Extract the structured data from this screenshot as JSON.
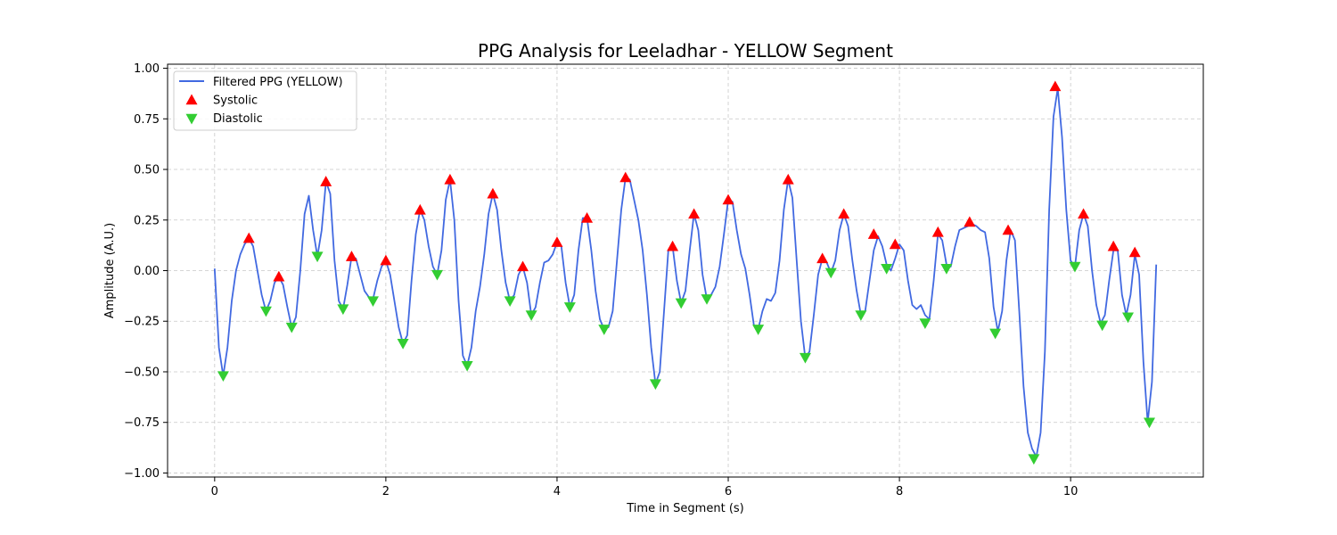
{
  "chart_data": {
    "type": "line",
    "title": "PPG Analysis for Leeladhar - YELLOW Segment",
    "xlabel": "Time in Segment (s)",
    "ylabel": "Amplitude (A.U.)",
    "xlim": [
      -0.55,
      11.55
    ],
    "ylim": [
      -1.02,
      1.02
    ],
    "xticks": [
      0,
      2,
      4,
      6,
      8,
      10
    ],
    "yticks": [
      -1.0,
      -0.75,
      -0.5,
      -0.25,
      0.0,
      0.25,
      0.5,
      0.75,
      1.0
    ],
    "grid": true,
    "legend_position": "upper-left",
    "colors": {
      "line": "#4169e1",
      "systolic": "#ff0000",
      "diastolic": "#32cd32"
    },
    "series": [
      {
        "name": "Filtered PPG (YELLOW)",
        "kind": "line",
        "points": [
          [
            0.0,
            0.01
          ],
          [
            0.05,
            -0.38
          ],
          [
            0.1,
            -0.52
          ],
          [
            0.15,
            -0.38
          ],
          [
            0.2,
            -0.15
          ],
          [
            0.25,
            0.0
          ],
          [
            0.3,
            0.08
          ],
          [
            0.35,
            0.13
          ],
          [
            0.4,
            0.16
          ],
          [
            0.45,
            0.12
          ],
          [
            0.5,
            0.0
          ],
          [
            0.55,
            -0.12
          ],
          [
            0.6,
            -0.2
          ],
          [
            0.65,
            -0.15
          ],
          [
            0.7,
            -0.06
          ],
          [
            0.75,
            -0.03
          ],
          [
            0.8,
            -0.07
          ],
          [
            0.85,
            -0.18
          ],
          [
            0.9,
            -0.28
          ],
          [
            0.95,
            -0.23
          ],
          [
            1.0,
            0.0
          ],
          [
            1.05,
            0.28
          ],
          [
            1.1,
            0.37
          ],
          [
            1.15,
            0.2
          ],
          [
            1.2,
            0.07
          ],
          [
            1.25,
            0.2
          ],
          [
            1.3,
            0.44
          ],
          [
            1.35,
            0.38
          ],
          [
            1.4,
            0.05
          ],
          [
            1.45,
            -0.15
          ],
          [
            1.5,
            -0.19
          ],
          [
            1.55,
            -0.07
          ],
          [
            1.6,
            0.07
          ],
          [
            1.65,
            0.06
          ],
          [
            1.7,
            -0.02
          ],
          [
            1.75,
            -0.1
          ],
          [
            1.8,
            -0.13
          ],
          [
            1.85,
            -0.14
          ],
          [
            1.9,
            -0.05
          ],
          [
            1.95,
            0.02
          ],
          [
            2.0,
            0.05
          ],
          [
            2.05,
            -0.02
          ],
          [
            2.1,
            -0.15
          ],
          [
            2.15,
            -0.28
          ],
          [
            2.2,
            -0.36
          ],
          [
            2.25,
            -0.32
          ],
          [
            2.3,
            -0.05
          ],
          [
            2.35,
            0.18
          ],
          [
            2.4,
            0.3
          ],
          [
            2.45,
            0.25
          ],
          [
            2.5,
            0.12
          ],
          [
            2.55,
            0.02
          ],
          [
            2.6,
            -0.02
          ],
          [
            2.65,
            0.1
          ],
          [
            2.7,
            0.35
          ],
          [
            2.75,
            0.45
          ],
          [
            2.8,
            0.25
          ],
          [
            2.85,
            -0.15
          ],
          [
            2.9,
            -0.42
          ],
          [
            2.95,
            -0.47
          ],
          [
            3.0,
            -0.38
          ],
          [
            3.05,
            -0.2
          ],
          [
            3.1,
            -0.08
          ],
          [
            3.15,
            0.08
          ],
          [
            3.2,
            0.28
          ],
          [
            3.25,
            0.38
          ],
          [
            3.3,
            0.3
          ],
          [
            3.35,
            0.1
          ],
          [
            3.4,
            -0.06
          ],
          [
            3.45,
            -0.15
          ],
          [
            3.5,
            -0.12
          ],
          [
            3.55,
            -0.02
          ],
          [
            3.6,
            0.02
          ],
          [
            3.65,
            -0.06
          ],
          [
            3.7,
            -0.22
          ],
          [
            3.75,
            -0.18
          ],
          [
            3.8,
            -0.06
          ],
          [
            3.85,
            0.04
          ],
          [
            3.9,
            0.05
          ],
          [
            3.95,
            0.08
          ],
          [
            4.0,
            0.14
          ],
          [
            4.05,
            0.12
          ],
          [
            4.1,
            -0.06
          ],
          [
            4.15,
            -0.18
          ],
          [
            4.2,
            -0.12
          ],
          [
            4.25,
            0.1
          ],
          [
            4.3,
            0.26
          ],
          [
            4.35,
            0.26
          ],
          [
            4.4,
            0.1
          ],
          [
            4.45,
            -0.1
          ],
          [
            4.5,
            -0.24
          ],
          [
            4.55,
            -0.29
          ],
          [
            4.6,
            -0.28
          ],
          [
            4.65,
            -0.2
          ],
          [
            4.7,
            0.05
          ],
          [
            4.75,
            0.3
          ],
          [
            4.8,
            0.46
          ],
          [
            4.85,
            0.45
          ],
          [
            4.9,
            0.35
          ],
          [
            4.95,
            0.25
          ],
          [
            5.0,
            0.1
          ],
          [
            5.05,
            -0.12
          ],
          [
            5.1,
            -0.38
          ],
          [
            5.15,
            -0.56
          ],
          [
            5.2,
            -0.5
          ],
          [
            5.25,
            -0.2
          ],
          [
            5.3,
            0.1
          ],
          [
            5.35,
            0.12
          ],
          [
            5.4,
            -0.05
          ],
          [
            5.45,
            -0.16
          ],
          [
            5.5,
            -0.1
          ],
          [
            5.55,
            0.1
          ],
          [
            5.6,
            0.28
          ],
          [
            5.65,
            0.2
          ],
          [
            5.7,
            -0.02
          ],
          [
            5.75,
            -0.14
          ],
          [
            5.8,
            -0.12
          ],
          [
            5.85,
            -0.08
          ],
          [
            5.9,
            0.02
          ],
          [
            5.95,
            0.18
          ],
          [
            6.0,
            0.35
          ],
          [
            6.05,
            0.34
          ],
          [
            6.1,
            0.2
          ],
          [
            6.15,
            0.08
          ],
          [
            6.2,
            0.01
          ],
          [
            6.25,
            -0.12
          ],
          [
            6.3,
            -0.27
          ],
          [
            6.35,
            -0.29
          ],
          [
            6.4,
            -0.2
          ],
          [
            6.45,
            -0.14
          ],
          [
            6.5,
            -0.15
          ],
          [
            6.55,
            -0.11
          ],
          [
            6.6,
            0.05
          ],
          [
            6.65,
            0.3
          ],
          [
            6.7,
            0.45
          ],
          [
            6.75,
            0.36
          ],
          [
            6.8,
            0.05
          ],
          [
            6.85,
            -0.25
          ],
          [
            6.9,
            -0.43
          ],
          [
            6.95,
            -0.4
          ],
          [
            7.0,
            -0.22
          ],
          [
            7.05,
            -0.02
          ],
          [
            7.1,
            0.06
          ],
          [
            7.15,
            0.04
          ],
          [
            7.2,
            -0.01
          ],
          [
            7.25,
            0.05
          ],
          [
            7.3,
            0.2
          ],
          [
            7.35,
            0.28
          ],
          [
            7.4,
            0.22
          ],
          [
            7.45,
            0.05
          ],
          [
            7.5,
            -0.1
          ],
          [
            7.55,
            -0.22
          ],
          [
            7.6,
            -0.2
          ],
          [
            7.65,
            -0.05
          ],
          [
            7.7,
            0.1
          ],
          [
            7.75,
            0.17
          ],
          [
            7.8,
            0.12
          ],
          [
            7.85,
            0.03
          ],
          [
            7.9,
            0.0
          ],
          [
            7.95,
            0.06
          ],
          [
            8.0,
            0.13
          ],
          [
            8.05,
            0.1
          ],
          [
            8.1,
            -0.05
          ],
          [
            8.15,
            -0.17
          ],
          [
            8.2,
            -0.19
          ],
          [
            8.25,
            -0.17
          ],
          [
            8.3,
            -0.22
          ],
          [
            8.35,
            -0.24
          ],
          [
            8.4,
            -0.05
          ],
          [
            8.45,
            0.18
          ],
          [
            8.5,
            0.15
          ],
          [
            8.55,
            0.03
          ],
          [
            8.6,
            0.02
          ],
          [
            8.65,
            0.12
          ],
          [
            8.7,
            0.2
          ],
          [
            8.75,
            0.21
          ],
          [
            8.8,
            0.22
          ],
          [
            8.85,
            0.23
          ],
          [
            8.9,
            0.22
          ],
          [
            8.95,
            0.2
          ],
          [
            9.0,
            0.19
          ],
          [
            9.05,
            0.06
          ],
          [
            9.1,
            -0.18
          ],
          [
            9.15,
            -0.3
          ],
          [
            9.2,
            -0.2
          ],
          [
            9.25,
            0.05
          ],
          [
            9.3,
            0.2
          ],
          [
            9.35,
            0.15
          ],
          [
            9.4,
            -0.2
          ],
          [
            9.45,
            -0.57
          ],
          [
            9.5,
            -0.8
          ],
          [
            9.55,
            -0.88
          ],
          [
            9.6,
            -0.92
          ],
          [
            9.65,
            -0.8
          ],
          [
            9.7,
            -0.4
          ],
          [
            9.75,
            0.3
          ],
          [
            9.8,
            0.76
          ],
          [
            9.85,
            0.9
          ],
          [
            9.9,
            0.66
          ],
          [
            9.95,
            0.3
          ],
          [
            10.0,
            0.05
          ],
          [
            10.05,
            0.02
          ],
          [
            10.1,
            0.2
          ],
          [
            10.15,
            0.28
          ],
          [
            10.2,
            0.22
          ],
          [
            10.25,
            0.0
          ],
          [
            10.3,
            -0.17
          ],
          [
            10.35,
            -0.26
          ],
          [
            10.4,
            -0.22
          ],
          [
            10.45,
            -0.05
          ],
          [
            10.5,
            0.1
          ],
          [
            10.55,
            0.1
          ],
          [
            10.6,
            -0.12
          ],
          [
            10.65,
            -0.22
          ],
          [
            10.7,
            -0.12
          ],
          [
            10.75,
            0.08
          ],
          [
            10.8,
            -0.02
          ],
          [
            10.85,
            -0.45
          ],
          [
            10.9,
            -0.75
          ],
          [
            10.95,
            -0.55
          ],
          [
            11.0,
            0.03
          ]
        ]
      },
      {
        "name": "Systolic",
        "kind": "marker-up",
        "points": [
          [
            0.4,
            0.16
          ],
          [
            0.75,
            -0.03
          ],
          [
            1.3,
            0.44
          ],
          [
            1.6,
            0.07
          ],
          [
            2.0,
            0.05
          ],
          [
            2.4,
            0.3
          ],
          [
            2.75,
            0.45
          ],
          [
            3.25,
            0.38
          ],
          [
            3.6,
            0.02
          ],
          [
            4.0,
            0.14
          ],
          [
            4.35,
            0.26
          ],
          [
            4.8,
            0.46
          ],
          [
            5.35,
            0.12
          ],
          [
            5.6,
            0.28
          ],
          [
            6.0,
            0.35
          ],
          [
            6.7,
            0.45
          ],
          [
            7.1,
            0.06
          ],
          [
            7.35,
            0.28
          ],
          [
            7.7,
            0.18
          ],
          [
            7.95,
            0.13
          ],
          [
            8.45,
            0.19
          ],
          [
            8.82,
            0.24
          ],
          [
            9.27,
            0.2
          ],
          [
            9.82,
            0.91
          ],
          [
            10.15,
            0.28
          ],
          [
            10.5,
            0.12
          ],
          [
            10.75,
            0.09
          ]
        ]
      },
      {
        "name": "Diastolic",
        "kind": "marker-down",
        "points": [
          [
            0.1,
            -0.52
          ],
          [
            0.6,
            -0.2
          ],
          [
            0.9,
            -0.28
          ],
          [
            1.2,
            0.07
          ],
          [
            1.5,
            -0.19
          ],
          [
            1.85,
            -0.15
          ],
          [
            2.2,
            -0.36
          ],
          [
            2.6,
            -0.02
          ],
          [
            2.95,
            -0.47
          ],
          [
            3.45,
            -0.15
          ],
          [
            3.7,
            -0.22
          ],
          [
            4.15,
            -0.18
          ],
          [
            4.55,
            -0.29
          ],
          [
            5.15,
            -0.56
          ],
          [
            5.45,
            -0.16
          ],
          [
            5.75,
            -0.14
          ],
          [
            6.35,
            -0.29
          ],
          [
            6.9,
            -0.43
          ],
          [
            7.2,
            -0.01
          ],
          [
            7.55,
            -0.22
          ],
          [
            7.85,
            0.01
          ],
          [
            8.3,
            -0.26
          ],
          [
            8.55,
            0.01
          ],
          [
            9.12,
            -0.31
          ],
          [
            9.57,
            -0.93
          ],
          [
            10.05,
            0.02
          ],
          [
            10.37,
            -0.27
          ],
          [
            10.67,
            -0.23
          ],
          [
            10.92,
            -0.75
          ]
        ]
      }
    ]
  }
}
